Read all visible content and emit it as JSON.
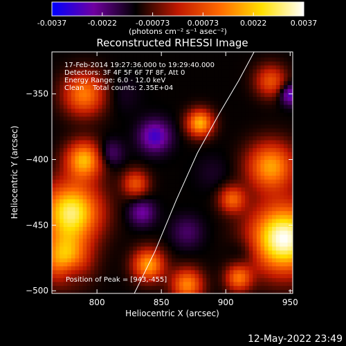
{
  "colorbar": {
    "ticks": [
      "-0.0037",
      "-0.0022",
      "-0.00073",
      "0.00073",
      "0.0022",
      "0.0037"
    ],
    "unit_label": "(photons cm⁻² s⁻¹ asec⁻²)",
    "colormap": [
      "#0000ff",
      "#7000a0",
      "#000000",
      "#c01800",
      "#ff6a00",
      "#ffe000",
      "#ffffff"
    ]
  },
  "annotations": {
    "time_range": "17-Feb-2014 19:27:36.000 to 19:29:40.000",
    "detectors": "Detectors: 3F 4F 5F 6F 7F 8F, Att 0",
    "energy": "Energy Range: 6.0 - 12.0 keV",
    "clean": "Clean    Total counts: 2.35E+04",
    "peak": "Position of Peak = [943,-455]"
  },
  "footer": {
    "timestamp": "12-May-2022 23:49"
  },
  "chart_data": {
    "type": "heatmap",
    "title": "Reconstructed RHESSI Image",
    "xlabel": "Heliocentric X (arcsec)",
    "ylabel": "Heliocentric Y (arcsec)",
    "xlim": [
      765,
      952
    ],
    "ylim": [
      -502,
      -318
    ],
    "xticks": [
      800,
      850,
      900,
      950
    ],
    "yticks": [
      -350,
      -400,
      -450,
      -500
    ],
    "zlim": [
      -0.0037,
      0.0037
    ],
    "limb_curve": [
      [
        829,
        -502
      ],
      [
        845,
        -470
      ],
      [
        862,
        -430
      ],
      [
        878,
        -395
      ],
      [
        895,
        -365
      ],
      [
        910,
        -340
      ],
      [
        922,
        -318
      ]
    ],
    "peak_position": [
      943,
      -455
    ],
    "blobs": [
      {
        "x": 945,
        "y": -460,
        "value": 0.0037,
        "r": 25
      },
      {
        "x": 780,
        "y": -440,
        "value": 0.003,
        "r": 22
      },
      {
        "x": 790,
        "y": -400,
        "value": 0.002,
        "r": 14
      },
      {
        "x": 775,
        "y": -475,
        "value": 0.002,
        "r": 18
      },
      {
        "x": 880,
        "y": -372,
        "value": 0.002,
        "r": 10
      },
      {
        "x": 935,
        "y": -405,
        "value": 0.0018,
        "r": 18
      },
      {
        "x": 790,
        "y": -350,
        "value": 0.0014,
        "r": 16
      },
      {
        "x": 840,
        "y": -480,
        "value": 0.0018,
        "r": 12
      },
      {
        "x": 870,
        "y": -495,
        "value": 0.0015,
        "r": 12
      },
      {
        "x": 910,
        "y": -490,
        "value": 0.0012,
        "r": 10
      },
      {
        "x": 905,
        "y": -430,
        "value": 0.001,
        "r": 10
      },
      {
        "x": 935,
        "y": -340,
        "value": 0.0008,
        "r": 12
      },
      {
        "x": 830,
        "y": -418,
        "value": 0.0008,
        "r": 10
      },
      {
        "x": 845,
        "y": -382,
        "value": -0.003,
        "r": 12
      },
      {
        "x": 835,
        "y": -440,
        "value": -0.0025,
        "r": 10
      },
      {
        "x": 810,
        "y": -395,
        "value": -0.0022,
        "r": 10
      },
      {
        "x": 870,
        "y": -455,
        "value": -0.002,
        "r": 12
      },
      {
        "x": 780,
        "y": -485,
        "value": -0.002,
        "r": 10
      },
      {
        "x": 950,
        "y": -350,
        "value": -0.003,
        "r": 8
      },
      {
        "x": 915,
        "y": -470,
        "value": -0.0018,
        "r": 12
      },
      {
        "x": 820,
        "y": -350,
        "value": -0.0015,
        "r": 14
      },
      {
        "x": 890,
        "y": -410,
        "value": -0.0015,
        "r": 14
      }
    ]
  }
}
